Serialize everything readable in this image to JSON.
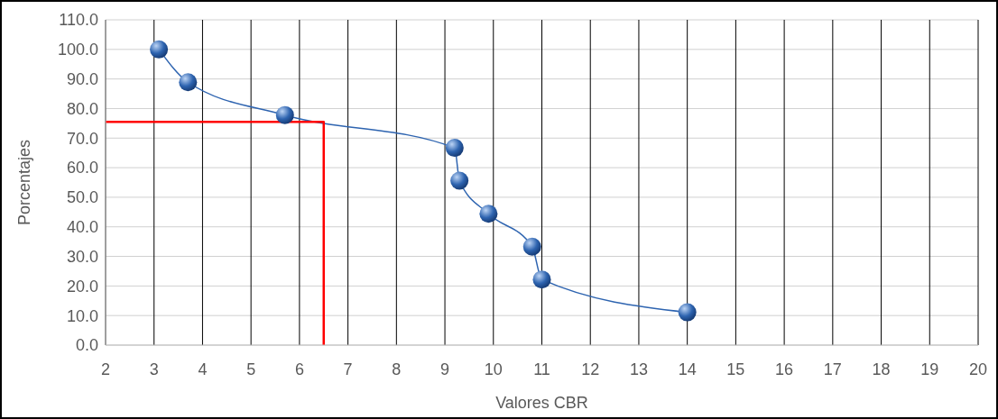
{
  "chart_data": {
    "type": "line",
    "xlabel": "Valores CBR",
    "ylabel": "Porcentajes",
    "xlim": [
      2,
      20
    ],
    "xticks": [
      2,
      3,
      4,
      5,
      6,
      7,
      8,
      9,
      10,
      11,
      12,
      13,
      14,
      15,
      16,
      17,
      18,
      19,
      20
    ],
    "ylim": [
      0,
      110
    ],
    "yticks": [
      {
        "value": 0,
        "label": "0.0"
      },
      {
        "value": 10,
        "label": "10.0"
      },
      {
        "value": 20,
        "label": "20.0"
      },
      {
        "value": 30,
        "label": "30.0"
      },
      {
        "value": 40,
        "label": "40.0"
      },
      {
        "value": 50,
        "label": "50.0"
      },
      {
        "value": 60,
        "label": "60.0"
      },
      {
        "value": 70,
        "label": "70.0"
      },
      {
        "value": 80,
        "label": "80.0"
      },
      {
        "value": 90,
        "label": "90.0"
      },
      {
        "value": 100,
        "label": "100.0"
      },
      {
        "value": 110,
        "label": "110.0"
      }
    ],
    "grid": true,
    "series": [
      {
        "color": "#2e64b0",
        "marker": "circle",
        "x": [
          3.1,
          3.7,
          5.7,
          9.2,
          9.3,
          9.9,
          10.8,
          11.0,
          14.0
        ],
        "values": [
          100,
          88.9,
          77.8,
          66.7,
          55.6,
          44.4,
          33.3,
          22.2,
          11.1
        ]
      },
      {
        "color": "#ff0000",
        "marker": "none",
        "x": [
          2,
          6.5,
          6.5
        ],
        "values": [
          75.5,
          75.5,
          0
        ]
      }
    ]
  }
}
